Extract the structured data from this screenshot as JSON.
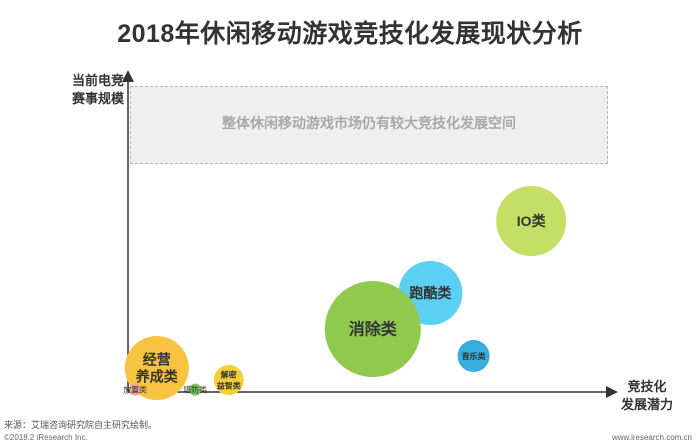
{
  "title": "2018年休闲移动游戏竞技化发展现状分析",
  "footer": {
    "source": "来源：艾瑞咨询研究院自主研究绘制。",
    "copyright": "©2018.2 iResearch Inc.",
    "website": "www.iresearch.com.cn"
  },
  "chart_data": {
    "type": "bubble",
    "xlabel": "竞技化\n发展潜力",
    "ylabel": "当前电竞\n赛事规模",
    "annotation": "整体休闲移动游戏市场仍有较大竞技化发展空间",
    "grid": false,
    "legend": "none",
    "x_range": [
      0,
      100
    ],
    "y_range": [
      0,
      100
    ],
    "series": [
      {
        "label": "IO类",
        "x": 84,
        "y": 57,
        "size": 35,
        "color": "#c5df66"
      },
      {
        "label": "跑酷类",
        "x": 63,
        "y": 33,
        "size": 32,
        "color": "#5bcff4"
      },
      {
        "label": "消除类",
        "x": 51,
        "y": 21,
        "size": 48,
        "color": "#8fca4f"
      },
      {
        "label": "音乐类",
        "x": 72,
        "y": 12,
        "size": 16,
        "color": "#36aedb"
      },
      {
        "label": "经营\n养成类",
        "x": 6,
        "y": 8,
        "size": 32,
        "color": "#f9c342"
      },
      {
        "label": "解密\n益智类",
        "x": 21,
        "y": 4,
        "size": 15,
        "color": "#f5cf38"
      },
      {
        "label": "塔防类",
        "x": 14,
        "y": 0.8,
        "size": 6,
        "color": "#7cc35c"
      },
      {
        "label": "放置类",
        "x": 1.5,
        "y": 0.8,
        "size": 6,
        "color": "#f3a29a"
      }
    ]
  }
}
